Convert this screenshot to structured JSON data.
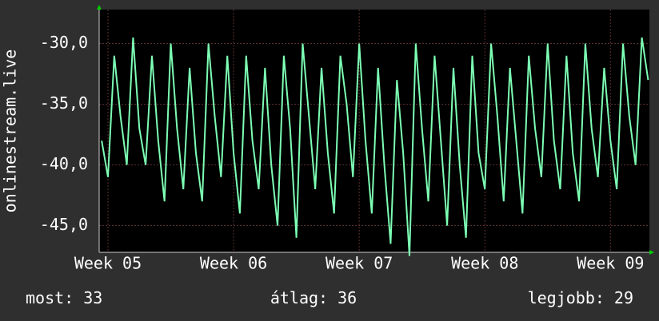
{
  "chart_data": {
    "type": "line",
    "y_label": "onlinestream.live",
    "xlim": [
      4.93,
      9.31
    ],
    "xticks": [
      {
        "value": 5,
        "label": "Week 05"
      },
      {
        "value": 6,
        "label": "Week 06"
      },
      {
        "value": 7,
        "label": "Week 07"
      },
      {
        "value": 8,
        "label": "Week 08"
      },
      {
        "value": 9,
        "label": "Week 09"
      }
    ],
    "ylim": [
      -47.2,
      -27.2
    ],
    "yticks": [
      {
        "value": -30,
        "label": "-30,0"
      },
      {
        "value": -35,
        "label": "-35,0"
      },
      {
        "value": -40,
        "label": "-40,0"
      },
      {
        "value": -45,
        "label": "-45,0"
      }
    ],
    "grid": true,
    "x": [
      4.95,
      5.0,
      5.05,
      5.1,
      5.15,
      5.2,
      5.25,
      5.3,
      5.35,
      5.4,
      5.45,
      5.5,
      5.55,
      5.6,
      5.65,
      5.7,
      5.75,
      5.8,
      5.85,
      5.9,
      5.95,
      6.0,
      6.05,
      6.1,
      6.15,
      6.2,
      6.25,
      6.3,
      6.35,
      6.4,
      6.45,
      6.5,
      6.55,
      6.6,
      6.65,
      6.7,
      6.75,
      6.8,
      6.85,
      6.9,
      6.95,
      7.0,
      7.05,
      7.1,
      7.15,
      7.2,
      7.25,
      7.3,
      7.35,
      7.4,
      7.45,
      7.5,
      7.55,
      7.6,
      7.65,
      7.7,
      7.75,
      7.8,
      7.85,
      7.9,
      7.95,
      8.0,
      8.05,
      8.1,
      8.15,
      8.2,
      8.25,
      8.3,
      8.35,
      8.4,
      8.45,
      8.5,
      8.55,
      8.6,
      8.65,
      8.7,
      8.75,
      8.8,
      8.85,
      8.9,
      8.95,
      9.0,
      9.05,
      9.1,
      9.15,
      9.2,
      9.25,
      9.3
    ],
    "series": [
      {
        "color": "#7dffb4",
        "values": [
          -38,
          -41,
          -31,
          -36,
          -40,
          -29.5,
          -37,
          -40,
          -31,
          -38,
          -43,
          -30,
          -37,
          -42,
          -32,
          -39,
          -43,
          -30,
          -36,
          -41,
          -31,
          -39,
          -44,
          -31,
          -38,
          -42,
          -32,
          -40,
          -45,
          -31,
          -37,
          -46,
          -30,
          -36,
          -42,
          -32,
          -39,
          -44,
          -31,
          -35,
          -41,
          -30,
          -38,
          -44,
          -32,
          -40,
          -46.5,
          -33,
          -39,
          -47.5,
          -30,
          -37,
          -43,
          -31,
          -38,
          -45,
          -32,
          -40,
          -46,
          -31,
          -39,
          -42,
          -30,
          -36,
          -43,
          -32,
          -38,
          -44,
          -31,
          -37,
          -41,
          -30,
          -38,
          -42,
          -31,
          -39,
          -43,
          -30,
          -37,
          -41,
          -32,
          -38,
          -42,
          -30,
          -36,
          -40,
          -29.5,
          -33
        ]
      }
    ],
    "stats": [
      {
        "label": "most:",
        "value": 33
      },
      {
        "label": "átlag:",
        "value": 36
      },
      {
        "label": "legjobb:",
        "value": 29
      }
    ]
  }
}
